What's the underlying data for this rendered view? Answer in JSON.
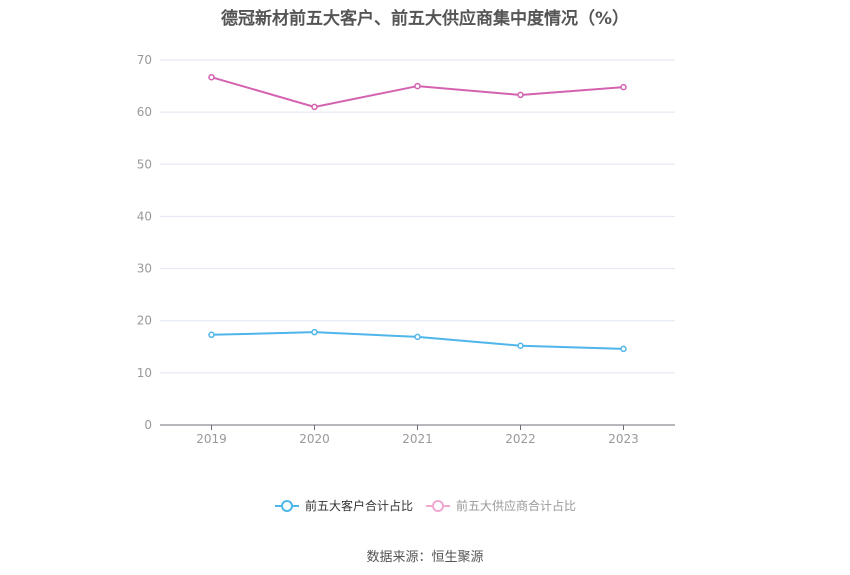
{
  "title": "德冠新材前五大客户、前五大供应商集中度情况（%）",
  "source": "数据来源：恒生聚源",
  "legend": [
    {
      "label": "前五大客户合计占比",
      "color": "#4fb6ea",
      "text_color": "#333333"
    },
    {
      "label": "前五大供应商合计占比",
      "color": "#f0a8d0",
      "text_color": "#999999"
    }
  ],
  "chart_data": {
    "type": "line",
    "title": "德冠新材前五大客户、前五大供应商集中度情况（%）",
    "xlabel": "",
    "ylabel": "",
    "categories": [
      "2019",
      "2020",
      "2021",
      "2022",
      "2023"
    ],
    "series": [
      {
        "name": "前五大客户合计占比",
        "color": "#4fb6ea",
        "values": [
          17.3,
          17.8,
          16.9,
          15.2,
          14.6
        ]
      },
      {
        "name": "前五大供应商合计占比",
        "color": "#d462b0",
        "values": [
          66.7,
          61.0,
          65.0,
          63.3,
          64.8
        ]
      }
    ],
    "ylim": [
      0,
      70
    ],
    "yticks": [
      0,
      10,
      20,
      30,
      40,
      50,
      60,
      70
    ],
    "grid": true,
    "legend_position": "bottom"
  }
}
